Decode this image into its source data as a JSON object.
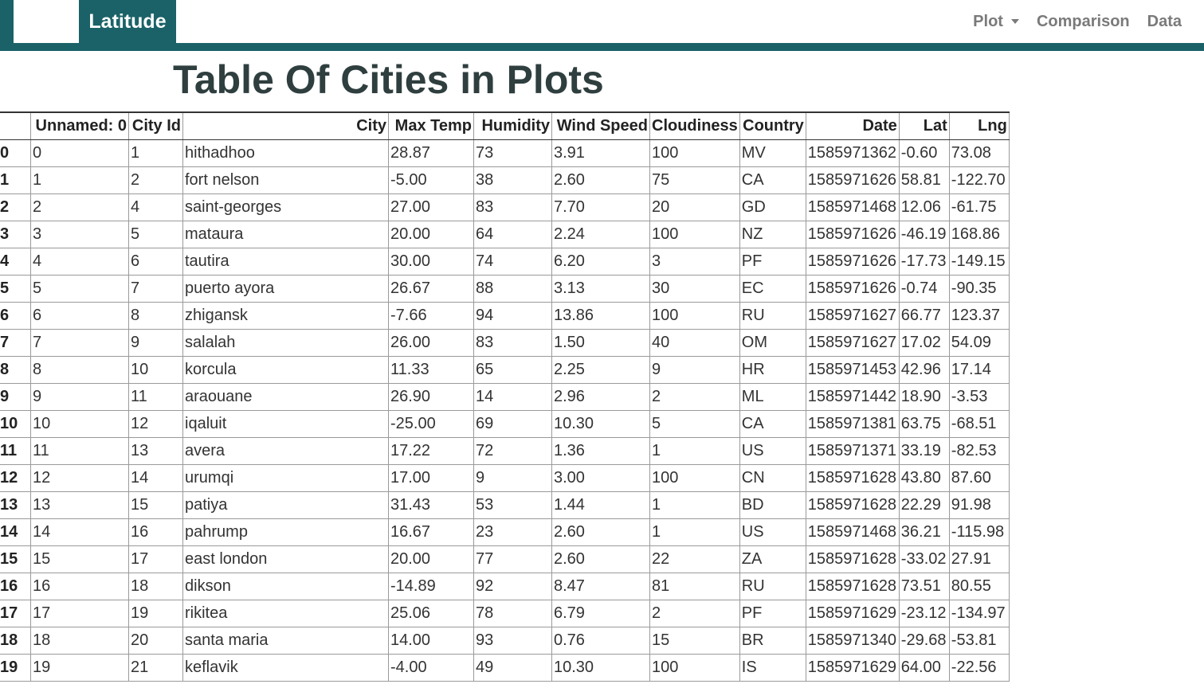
{
  "navbar": {
    "brand": "Latitude",
    "links": [
      {
        "label": "Plot",
        "dropdown": true
      },
      {
        "label": "Comparison",
        "dropdown": false
      },
      {
        "label": "Data",
        "dropdown": false
      }
    ],
    "accent_color": "#1a6268"
  },
  "page": {
    "title": "Table Of Cities in Plots"
  },
  "table": {
    "columns": [
      "",
      "Unnamed: 0",
      "City Id",
      "City",
      "Max Temp",
      "Humidity",
      "Wind Speed",
      "Cloudiness",
      "Country",
      "Date",
      "Lat",
      "Lng"
    ],
    "rows": [
      [
        "0",
        "0",
        "1",
        "hithadhoo",
        "28.87",
        "73",
        "3.91",
        "100",
        "MV",
        "1585971362",
        "-0.60",
        "73.08"
      ],
      [
        "1",
        "1",
        "2",
        "fort nelson",
        "-5.00",
        "38",
        "2.60",
        "75",
        "CA",
        "1585971626",
        "58.81",
        "-122.70"
      ],
      [
        "2",
        "2",
        "4",
        "saint-georges",
        "27.00",
        "83",
        "7.70",
        "20",
        "GD",
        "1585971468",
        "12.06",
        "-61.75"
      ],
      [
        "3",
        "3",
        "5",
        "mataura",
        "20.00",
        "64",
        "2.24",
        "100",
        "NZ",
        "1585971626",
        "-46.19",
        "168.86"
      ],
      [
        "4",
        "4",
        "6",
        "tautira",
        "30.00",
        "74",
        "6.20",
        "3",
        "PF",
        "1585971626",
        "-17.73",
        "-149.15"
      ],
      [
        "5",
        "5",
        "7",
        "puerto ayora",
        "26.67",
        "88",
        "3.13",
        "30",
        "EC",
        "1585971626",
        "-0.74",
        "-90.35"
      ],
      [
        "6",
        "6",
        "8",
        "zhigansk",
        "-7.66",
        "94",
        "13.86",
        "100",
        "RU",
        "1585971627",
        "66.77",
        "123.37"
      ],
      [
        "7",
        "7",
        "9",
        "salalah",
        "26.00",
        "83",
        "1.50",
        "40",
        "OM",
        "1585971627",
        "17.02",
        "54.09"
      ],
      [
        "8",
        "8",
        "10",
        "korcula",
        "11.33",
        "65",
        "2.25",
        "9",
        "HR",
        "1585971453",
        "42.96",
        "17.14"
      ],
      [
        "9",
        "9",
        "11",
        "araouane",
        "26.90",
        "14",
        "2.96",
        "2",
        "ML",
        "1585971442",
        "18.90",
        "-3.53"
      ],
      [
        "10",
        "10",
        "12",
        "iqaluit",
        "-25.00",
        "69",
        "10.30",
        "5",
        "CA",
        "1585971381",
        "63.75",
        "-68.51"
      ],
      [
        "11",
        "11",
        "13",
        "avera",
        "17.22",
        "72",
        "1.36",
        "1",
        "US",
        "1585971371",
        "33.19",
        "-82.53"
      ],
      [
        "12",
        "12",
        "14",
        "urumqi",
        "17.00",
        "9",
        "3.00",
        "100",
        "CN",
        "1585971628",
        "43.80",
        "87.60"
      ],
      [
        "13",
        "13",
        "15",
        "patiya",
        "31.43",
        "53",
        "1.44",
        "1",
        "BD",
        "1585971628",
        "22.29",
        "91.98"
      ],
      [
        "14",
        "14",
        "16",
        "pahrump",
        "16.67",
        "23",
        "2.60",
        "1",
        "US",
        "1585971468",
        "36.21",
        "-115.98"
      ],
      [
        "15",
        "15",
        "17",
        "east london",
        "20.00",
        "77",
        "2.60",
        "22",
        "ZA",
        "1585971628",
        "-33.02",
        "27.91"
      ],
      [
        "16",
        "16",
        "18",
        "dikson",
        "-14.89",
        "92",
        "8.47",
        "81",
        "RU",
        "1585971628",
        "73.51",
        "80.55"
      ],
      [
        "17",
        "17",
        "19",
        "rikitea",
        "25.06",
        "78",
        "6.79",
        "2",
        "PF",
        "1585971629",
        "-23.12",
        "-134.97"
      ],
      [
        "18",
        "18",
        "20",
        "santa maria",
        "14.00",
        "93",
        "0.76",
        "15",
        "BR",
        "1585971340",
        "-29.68",
        "-53.81"
      ],
      [
        "19",
        "19",
        "21",
        "keflavik",
        "-4.00",
        "49",
        "10.30",
        "100",
        "IS",
        "1585971629",
        "64.00",
        "-22.56"
      ]
    ]
  }
}
